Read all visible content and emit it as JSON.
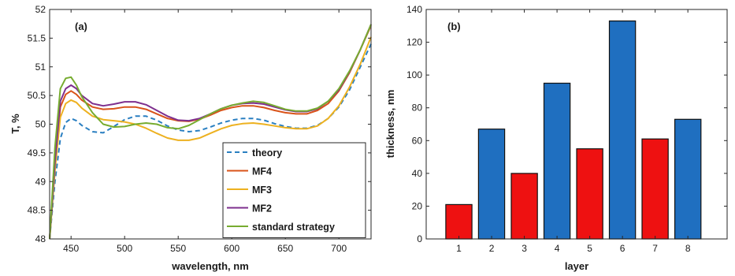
{
  "chart_data": [
    {
      "type": "line",
      "panel_label": "(a)",
      "xlabel": "wavelength, nm",
      "ylabel": "T, %",
      "xlim": [
        430,
        730
      ],
      "ylim": [
        48,
        52
      ],
      "xticks": [
        450,
        500,
        550,
        600,
        650,
        700
      ],
      "yticks": [
        48,
        48.5,
        49,
        49.5,
        50,
        50.5,
        51,
        51.5,
        52
      ],
      "legend_position": "bottom-right",
      "series": [
        {
          "name": "theory",
          "color": "#2a7fc1",
          "dash": true,
          "x": [
            430,
            435,
            440,
            445,
            450,
            455,
            460,
            470,
            480,
            490,
            500,
            510,
            520,
            530,
            540,
            550,
            560,
            570,
            580,
            590,
            600,
            610,
            620,
            630,
            640,
            650,
            660,
            670,
            680,
            690,
            700,
            710,
            720,
            730
          ],
          "y": [
            48.0,
            49.0,
            49.75,
            50.03,
            50.1,
            50.06,
            49.98,
            49.87,
            49.85,
            49.96,
            50.08,
            50.14,
            50.14,
            50.07,
            49.97,
            49.9,
            49.87,
            49.89,
            49.95,
            50.02,
            50.07,
            50.1,
            50.1,
            50.07,
            50.01,
            49.96,
            49.93,
            49.93,
            49.98,
            50.1,
            50.3,
            50.6,
            51.0,
            51.4
          ]
        },
        {
          "name": "MF4",
          "color": "#d95319",
          "dash": false,
          "x": [
            430,
            435,
            440,
            445,
            450,
            455,
            460,
            470,
            480,
            490,
            500,
            510,
            520,
            530,
            540,
            550,
            560,
            570,
            580,
            590,
            600,
            610,
            620,
            630,
            640,
            650,
            660,
            670,
            680,
            690,
            700,
            710,
            720,
            730
          ],
          "y": [
            48.0,
            49.3,
            50.3,
            50.52,
            50.58,
            50.52,
            50.42,
            50.3,
            50.26,
            50.27,
            50.3,
            50.3,
            50.26,
            50.18,
            50.1,
            50.06,
            50.05,
            50.09,
            50.16,
            50.24,
            50.29,
            50.32,
            50.32,
            50.29,
            50.24,
            50.2,
            50.18,
            50.18,
            50.24,
            50.36,
            50.58,
            50.9,
            51.3,
            51.72
          ]
        },
        {
          "name": "MF3",
          "color": "#edb120",
          "dash": false,
          "x": [
            430,
            435,
            440,
            445,
            450,
            455,
            460,
            470,
            480,
            490,
            500,
            510,
            520,
            530,
            540,
            550,
            560,
            570,
            580,
            590,
            600,
            610,
            620,
            630,
            640,
            650,
            660,
            670,
            680,
            690,
            700,
            710,
            720,
            730
          ],
          "y": [
            48.0,
            49.2,
            50.12,
            50.36,
            50.42,
            50.38,
            50.28,
            50.14,
            50.08,
            50.06,
            50.04,
            50.0,
            49.93,
            49.84,
            49.76,
            49.72,
            49.72,
            49.76,
            49.84,
            49.92,
            49.98,
            50.01,
            50.02,
            50.0,
            49.97,
            49.94,
            49.92,
            49.92,
            49.97,
            50.1,
            50.32,
            50.65,
            51.05,
            51.52
          ]
        },
        {
          "name": "MF2",
          "color": "#7e2f8e",
          "dash": false,
          "x": [
            430,
            435,
            440,
            445,
            450,
            455,
            460,
            470,
            480,
            490,
            500,
            510,
            520,
            530,
            540,
            550,
            560,
            570,
            580,
            590,
            600,
            610,
            620,
            630,
            640,
            650,
            660,
            670,
            680,
            690,
            700,
            710,
            720,
            730
          ],
          "y": [
            48.0,
            49.35,
            50.4,
            50.62,
            50.68,
            50.62,
            50.5,
            50.36,
            50.32,
            50.35,
            50.39,
            50.39,
            50.34,
            50.24,
            50.14,
            50.07,
            50.06,
            50.1,
            50.18,
            50.27,
            50.33,
            50.36,
            50.37,
            50.35,
            50.3,
            50.25,
            50.22,
            50.22,
            50.27,
            50.4,
            50.6,
            50.92,
            51.3,
            51.74
          ]
        },
        {
          "name": "standard strategy",
          "color": "#77ac30",
          "dash": false,
          "x": [
            430,
            435,
            440,
            445,
            450,
            455,
            460,
            470,
            480,
            490,
            500,
            510,
            520,
            530,
            540,
            550,
            560,
            570,
            580,
            590,
            600,
            610,
            620,
            630,
            640,
            650,
            660,
            670,
            680,
            690,
            700,
            710,
            720,
            730
          ],
          "y": [
            48.0,
            49.6,
            50.62,
            50.8,
            50.82,
            50.68,
            50.48,
            50.2,
            50.0,
            49.95,
            49.96,
            50.0,
            50.02,
            50.0,
            49.94,
            49.92,
            49.98,
            50.08,
            50.18,
            50.27,
            50.33,
            50.37,
            50.4,
            50.38,
            50.32,
            50.26,
            50.23,
            50.23,
            50.28,
            50.4,
            50.62,
            50.93,
            51.3,
            51.74
          ]
        }
      ]
    },
    {
      "type": "bar",
      "panel_label": "(b)",
      "xlabel": "layer",
      "ylabel": "thickness, nm",
      "ylim": [
        0,
        140
      ],
      "yticks": [
        0,
        20,
        40,
        60,
        80,
        100,
        120,
        140
      ],
      "categories": [
        "1",
        "2",
        "3",
        "4",
        "5",
        "6",
        "7",
        "8"
      ],
      "values": [
        21,
        67,
        40,
        95,
        55,
        133,
        61,
        73
      ],
      "bar_colors": [
        "#ee1111",
        "#1f6fc0",
        "#ee1111",
        "#1f6fc0",
        "#ee1111",
        "#1f6fc0",
        "#ee1111",
        "#1f6fc0"
      ]
    }
  ]
}
